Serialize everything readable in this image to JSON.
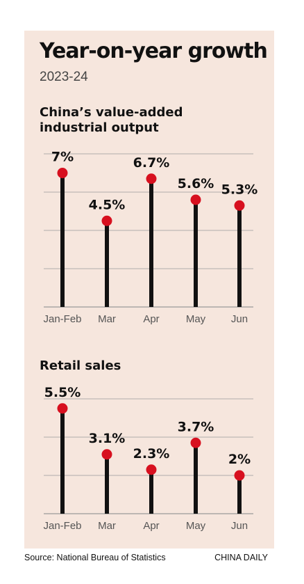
{
  "header": {
    "title": "Year-on-year growth",
    "subtitle": "2023-24"
  },
  "colors": {
    "background": "#f6e6dd",
    "stem": "#111111",
    "dot": "#d7101f",
    "grid": "#999999"
  },
  "chart_data": [
    {
      "type": "lollipop",
      "title": "China’s value-added industrial output",
      "title_lines": [
        "China’s value-added",
        "industrial output"
      ],
      "categories": [
        "Jan-Feb",
        "Mar",
        "Apr",
        "May",
        "Jun"
      ],
      "values": [
        7,
        4.5,
        6.7,
        5.6,
        5.3
      ],
      "labels": [
        "7%",
        "4.5%",
        "6.7%",
        "5.6%",
        "5.3%"
      ],
      "ylim": [
        0,
        8
      ],
      "grid": true
    },
    {
      "type": "lollipop",
      "title": "Retail sales",
      "title_lines": [
        "Retail sales"
      ],
      "categories": [
        "Jan-Feb",
        "Mar",
        "Apr",
        "May",
        "Jun"
      ],
      "values": [
        5.5,
        3.1,
        2.3,
        3.7,
        2
      ],
      "labels": [
        "5.5%",
        "3.1%",
        "2.3%",
        "3.7%",
        "2%"
      ],
      "ylim": [
        0,
        6
      ],
      "grid": true
    }
  ],
  "footer": {
    "source": "Source: National Bureau of Statistics",
    "credit": "CHINA DAILY"
  }
}
